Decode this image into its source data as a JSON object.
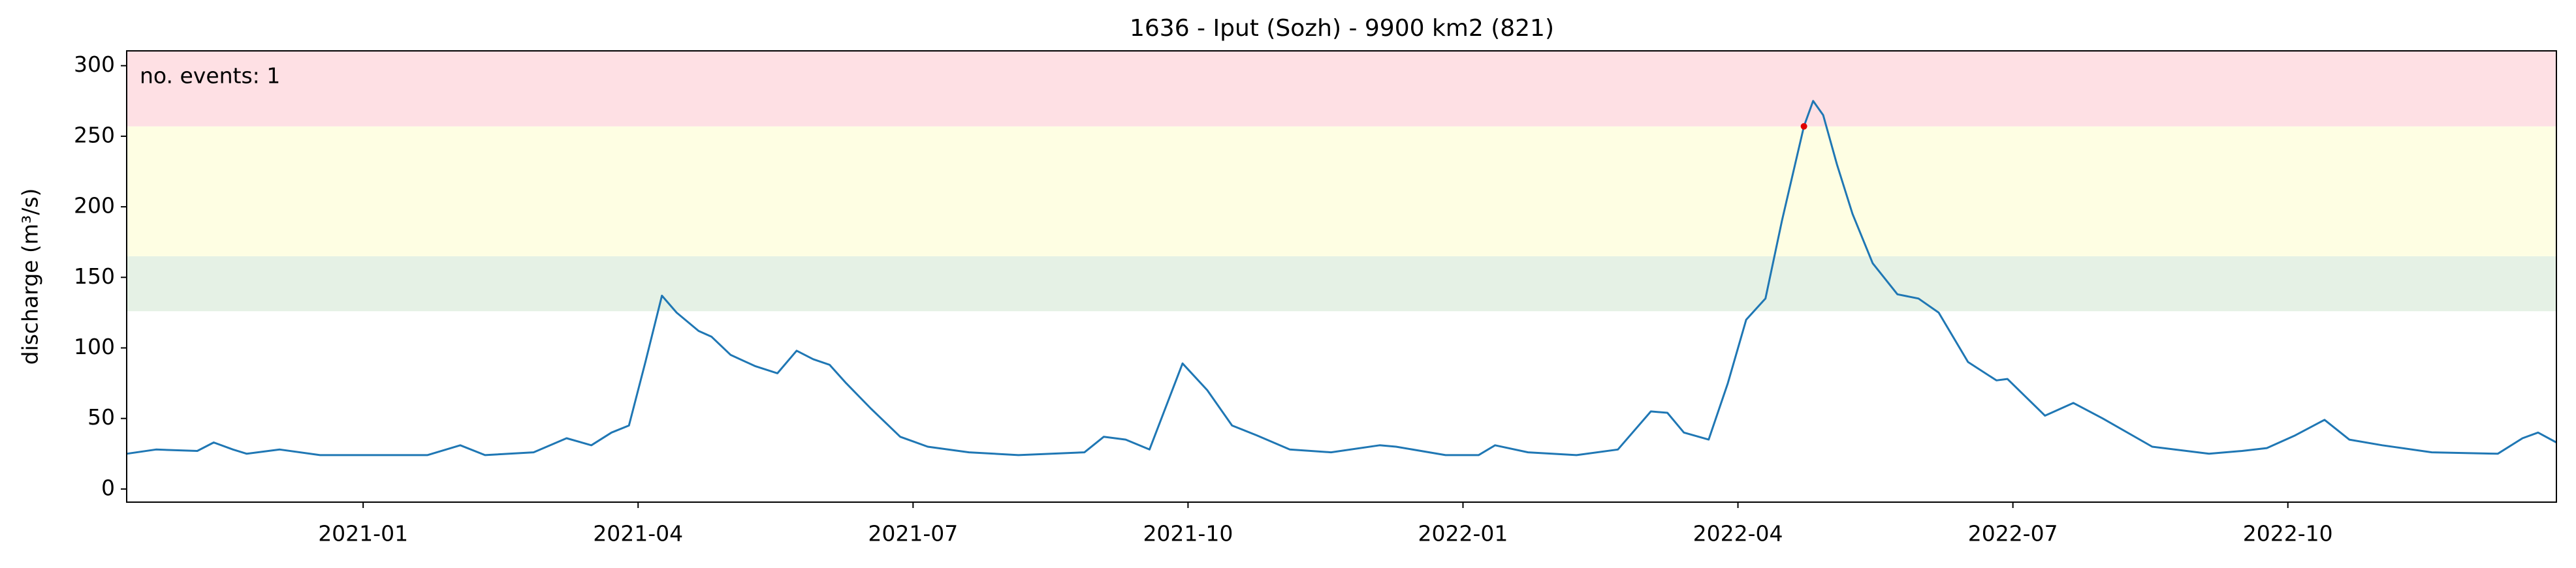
{
  "chart_data": {
    "type": "line",
    "title": "1636 - Iput (Sozh) - 9900 km2 (821)",
    "y_label": "discharge (m³/s)",
    "annotation": "no. events: 1",
    "x": [
      -2.58,
      -2.26,
      -1.81,
      -1.63,
      -1.42,
      -1.27,
      -0.91,
      -0.47,
      0.25,
      0.7,
      1.06,
      1.33,
      1.86,
      2.22,
      2.49,
      2.71,
      2.9,
      3.08,
      3.26,
      3.42,
      3.66,
      3.8,
      4.01,
      4.28,
      4.52,
      4.73,
      4.91,
      5.09,
      5.27,
      5.54,
      5.86,
      6.16,
      6.61,
      7.15,
      7.87,
      8.08,
      8.32,
      8.58,
      8.94,
      9.21,
      9.48,
      9.75,
      10.11,
      10.56,
      11.09,
      11.27,
      11.81,
      12.17,
      12.35,
      12.71,
      13.24,
      13.69,
      14.05,
      14.23,
      14.41,
      14.68,
      14.89,
      15.09,
      15.3,
      15.48,
      15.72,
      15.82,
      15.93,
      16.08,
      16.25,
      16.47,
      16.74,
      16.97,
      17.19,
      17.51,
      17.82,
      17.94,
      18.35,
      18.66,
      18.98,
      19.52,
      20.14,
      20.5,
      20.77,
      21.08,
      21.4,
      21.67,
      22.03,
      22.57,
      23.29,
      23.56,
      23.73,
      23.93
    ],
    "series": [
      {
        "name": "discharge",
        "color": "#1f77b4",
        "values": [
          25,
          28,
          27,
          33,
          28,
          25,
          28,
          24,
          24,
          24,
          31,
          24,
          26,
          36,
          31,
          40,
          45,
          90,
          137,
          125,
          112,
          108,
          95,
          87,
          82,
          98,
          92,
          88,
          75,
          57,
          37,
          30,
          26,
          24,
          26,
          37,
          35,
          28,
          89,
          70,
          45,
          38,
          28,
          26,
          31,
          30,
          24,
          24,
          31,
          26,
          24,
          28,
          55,
          54,
          40,
          35,
          75,
          120,
          135,
          190,
          257,
          275,
          265,
          230,
          195,
          160,
          138,
          135,
          125,
          90,
          77,
          78,
          52,
          61,
          50,
          30,
          25,
          27,
          29,
          38,
          49,
          35,
          31,
          26,
          25,
          36,
          40,
          33
        ]
      }
    ],
    "events": {
      "color": "#e00000",
      "x": [
        15.72
      ],
      "values": [
        257
      ]
    },
    "bands": {
      "bounds": [
        126,
        165,
        257
      ],
      "colors": [
        "#e5f1e5",
        "#fefee3",
        "#fee0e4"
      ]
    },
    "xlim": [
      -2.58,
      23.93
    ],
    "xticks": [
      {
        "value": 0,
        "label": "2021-01"
      },
      {
        "value": 3,
        "label": "2021-04"
      },
      {
        "value": 6,
        "label": "2021-07"
      },
      {
        "value": 9,
        "label": "2021-10"
      },
      {
        "value": 12,
        "label": "2022-01"
      },
      {
        "value": 15,
        "label": "2022-04"
      },
      {
        "value": 18,
        "label": "2022-07"
      },
      {
        "value": 21,
        "label": "2022-10"
      }
    ],
    "ylim": [
      -9.3,
      310.5
    ],
    "yticks": [
      0,
      50,
      100,
      150,
      200,
      250,
      300
    ],
    "grid": false
  }
}
